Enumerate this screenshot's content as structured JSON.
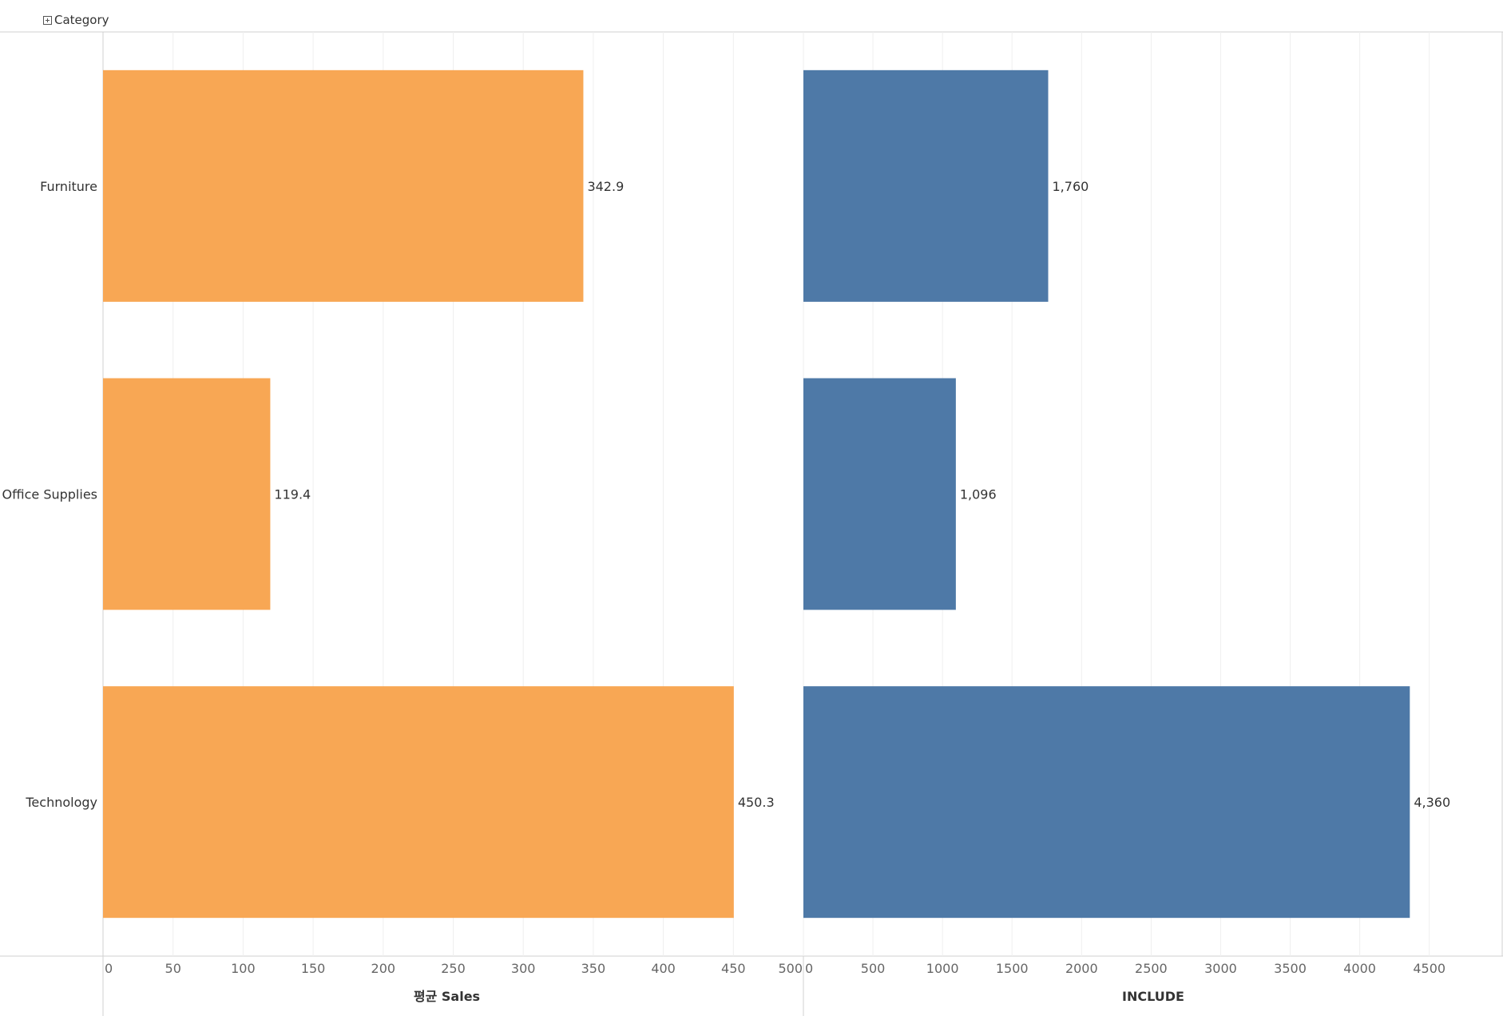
{
  "dimension_header": {
    "label": "Category"
  },
  "colors": {
    "left_bar": "#F8A754",
    "right_bar": "#4E79A7",
    "gridline": "#EFEFEF",
    "axis_line": "#D0D0D0",
    "tick_text": "#666666",
    "label_text": "#333333"
  },
  "chart_data": [
    {
      "type": "bar",
      "orientation": "horizontal",
      "categories": [
        "Furniture",
        "Office Supplies",
        "Technology"
      ],
      "values": [
        342.9,
        119.4,
        450.3
      ],
      "value_labels": [
        "342.9",
        "119.4",
        "450.3"
      ],
      "xlabel": "평균 Sales",
      "xlim": [
        0,
        500
      ],
      "ticks": [
        0,
        50,
        100,
        150,
        200,
        250,
        300,
        350,
        400,
        450,
        500
      ],
      "grid": true
    },
    {
      "type": "bar",
      "orientation": "horizontal",
      "categories": [
        "Furniture",
        "Office Supplies",
        "Technology"
      ],
      "values": [
        1760,
        1096,
        4360
      ],
      "value_labels": [
        "1,760",
        "1,096",
        "4,360"
      ],
      "xlabel": "INCLUDE",
      "xlim": [
        0,
        5030
      ],
      "ticks": [
        0,
        500,
        1000,
        1500,
        2000,
        2500,
        3000,
        3500,
        4000,
        4500
      ],
      "grid": true
    }
  ]
}
